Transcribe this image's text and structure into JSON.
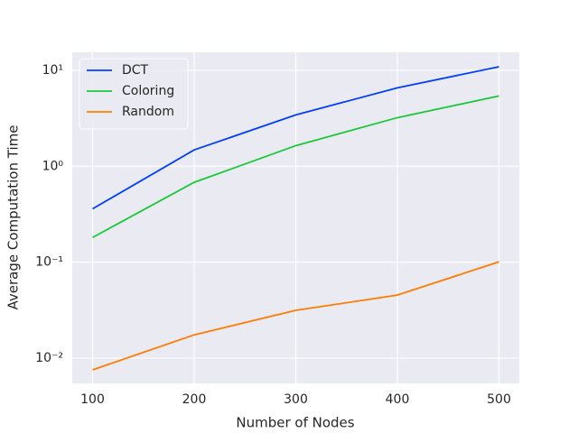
{
  "chart_data": {
    "type": "line",
    "x_label": "Number of Nodes",
    "y_label": "Average Computation Time",
    "x": [
      100,
      200,
      300,
      400,
      500
    ],
    "series": [
      {
        "name": "DCT",
        "color": "#023eff",
        "values": [
          0.36,
          1.48,
          3.43,
          6.56,
          10.9
        ]
      },
      {
        "name": "Coloring",
        "color": "#1ac938",
        "values": [
          0.181,
          0.68,
          1.64,
          3.21,
          5.4
        ]
      },
      {
        "name": "Random",
        "color": "#ff7c00",
        "values": [
          0.00755,
          0.0175,
          0.0315,
          0.0454,
          0.101
        ]
      }
    ],
    "xlim": [
      80,
      520
    ],
    "xticks": [
      100,
      200,
      300,
      400,
      500
    ],
    "ylim": [
      0.00546,
      15.4
    ],
    "y_scale": "log",
    "yticks": [
      {
        "value": 0.01,
        "label": "10⁻²"
      },
      {
        "value": 0.1,
        "label": "10⁻¹"
      },
      {
        "value": 1,
        "label": "10⁰"
      },
      {
        "value": 10,
        "label": "10¹"
      }
    ],
    "grid": true,
    "legend_position": "upper left"
  }
}
